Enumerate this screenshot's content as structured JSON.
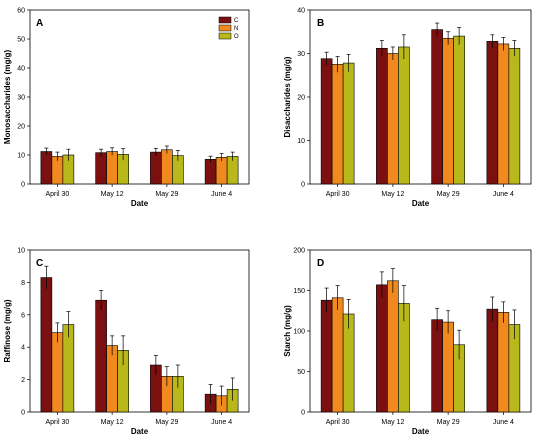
{
  "colors": {
    "C": "#7a1010",
    "N": "#f08a1e",
    "O": "#b8b81a",
    "axis": "#000000"
  },
  "legend": [
    {
      "key": "C",
      "label": "C"
    },
    {
      "key": "N",
      "label": "N"
    },
    {
      "key": "O",
      "label": "O"
    }
  ],
  "chart_data": [
    {
      "type": "bar",
      "panel_label": "A",
      "categories": [
        "April 30",
        "May 12",
        "May 29",
        "June 4"
      ],
      "xlabel": "Date",
      "ylabel": "Monosaccharides (mg/g)",
      "ylim": [
        0,
        60
      ],
      "yticks": [
        0,
        10,
        20,
        30,
        40,
        50,
        60
      ],
      "legend_placement": "top-right",
      "series": [
        {
          "name": "C",
          "values": [
            11.2,
            10.8,
            11.0,
            8.5
          ],
          "errors": [
            1.2,
            1.2,
            1.3,
            1.1
          ]
        },
        {
          "name": "N",
          "values": [
            9.5,
            11.2,
            11.8,
            9.2
          ],
          "errors": [
            1.5,
            1.3,
            1.3,
            1.3
          ]
        },
        {
          "name": "O",
          "values": [
            10.0,
            10.2,
            9.8,
            9.5
          ],
          "errors": [
            2.0,
            2.0,
            1.8,
            1.5
          ]
        }
      ]
    },
    {
      "type": "bar",
      "panel_label": "B",
      "categories": [
        "April 30",
        "May 12",
        "May 29",
        "June 4"
      ],
      "xlabel": "Date",
      "ylabel": "Disaccharides (mg/g)",
      "ylim": [
        0,
        40
      ],
      "yticks": [
        0,
        10,
        20,
        30,
        40
      ],
      "series": [
        {
          "name": "C",
          "values": [
            28.8,
            31.2,
            35.5,
            32.8
          ],
          "errors": [
            1.5,
            1.8,
            1.5,
            1.5
          ]
        },
        {
          "name": "N",
          "values": [
            27.5,
            30.0,
            33.5,
            32.2
          ],
          "errors": [
            1.8,
            1.5,
            1.5,
            1.5
          ]
        },
        {
          "name": "O",
          "values": [
            27.8,
            31.5,
            34.0,
            31.2
          ],
          "errors": [
            2.0,
            2.8,
            2.0,
            1.8
          ]
        }
      ]
    },
    {
      "type": "bar",
      "panel_label": "C",
      "categories": [
        "April 30",
        "May 12",
        "May 29",
        "June 4"
      ],
      "xlabel": "Date",
      "ylabel": "Raffinose (mg/g)",
      "ylim": [
        0,
        10
      ],
      "yticks": [
        0,
        2,
        4,
        6,
        8,
        10
      ],
      "series": [
        {
          "name": "C",
          "values": [
            8.3,
            6.9,
            2.9,
            1.1
          ],
          "errors": [
            0.7,
            0.6,
            0.6,
            0.6
          ]
        },
        {
          "name": "N",
          "values": [
            4.9,
            4.1,
            2.2,
            1.0
          ],
          "errors": [
            0.6,
            0.6,
            0.6,
            0.6
          ]
        },
        {
          "name": "O",
          "values": [
            5.4,
            3.8,
            2.2,
            1.4
          ],
          "errors": [
            0.8,
            0.9,
            0.7,
            0.7
          ]
        }
      ]
    },
    {
      "type": "bar",
      "panel_label": "D",
      "categories": [
        "April 30",
        "May 12",
        "May 29",
        "June 4"
      ],
      "xlabel": "Date",
      "ylabel": "Starch (mg/g)",
      "ylim": [
        0,
        200
      ],
      "yticks": [
        0,
        50,
        100,
        150,
        200
      ],
      "series": [
        {
          "name": "C",
          "values": [
            138,
            157,
            114,
            127
          ],
          "errors": [
            15,
            16,
            14,
            15
          ]
        },
        {
          "name": "N",
          "values": [
            141,
            162,
            111,
            123
          ],
          "errors": [
            15,
            15,
            14,
            13
          ]
        },
        {
          "name": "O",
          "values": [
            121,
            134,
            83,
            108
          ],
          "errors": [
            18,
            22,
            18,
            18
          ]
        }
      ]
    }
  ]
}
